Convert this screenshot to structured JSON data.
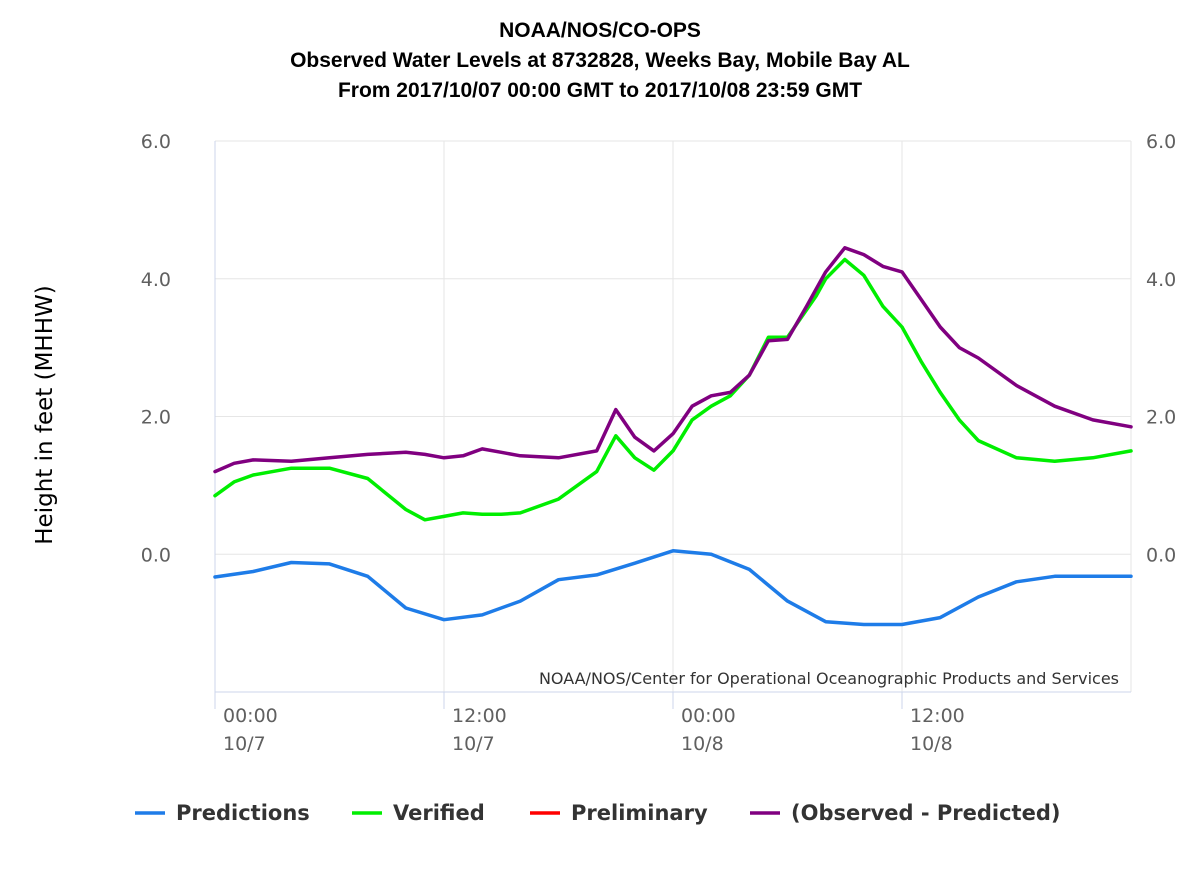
{
  "chart_data": {
    "type": "line",
    "title": [
      "NOAA/NOS/CO-OPS",
      "Observed Water Levels at 8732828, Weeks Bay, Mobile Bay AL",
      "From 2017/10/07 00:00 GMT to 2017/10/08 23:59 GMT"
    ],
    "ylabel": "Height in feet (MHHW)",
    "ylim": [
      -2.0,
      6.0
    ],
    "xlim": [
      0,
      48
    ],
    "y_ticks": [
      "6.0",
      "4.0",
      "2.0",
      "0.0"
    ],
    "x_ticks": [
      {
        "time": "00:00",
        "date": "10/7"
      },
      {
        "time": "12:00",
        "date": "10/7"
      },
      {
        "time": "00:00",
        "date": "10/8"
      },
      {
        "time": "12:00",
        "date": "10/8"
      }
    ],
    "grid": true,
    "credit": "NOAA/NOS/Center for Operational Oceanographic Products and Services",
    "legend_position": "bottom",
    "series": [
      {
        "name": "Predictions",
        "color": "#1e7ce8",
        "x": [
          0,
          2,
          4,
          6,
          8,
          10,
          12,
          14,
          16,
          18,
          20,
          22,
          24,
          26,
          28,
          30,
          32,
          34,
          36,
          38,
          40,
          42,
          44,
          46,
          48
        ],
        "values": [
          -0.33,
          -0.25,
          -0.12,
          -0.14,
          -0.32,
          -0.78,
          -0.95,
          -0.88,
          -0.68,
          -0.37,
          -0.3,
          -0.13,
          0.05,
          0.0,
          -0.22,
          -0.68,
          -0.98,
          -1.02,
          -1.02,
          -0.92,
          -0.62,
          -0.4,
          -0.32,
          -0.32,
          -0.32
        ]
      },
      {
        "name": "Verified",
        "color": "#00ee00",
        "x": [
          0,
          1,
          2,
          4,
          6,
          8,
          10,
          11,
          12,
          13,
          14,
          15,
          16,
          18,
          20,
          21,
          22,
          23,
          24,
          25,
          26,
          27,
          28,
          29,
          30,
          31,
          31.5,
          32,
          33,
          34,
          35,
          36,
          37,
          38,
          39,
          40,
          42,
          44,
          46,
          48
        ],
        "values": [
          0.85,
          1.05,
          1.15,
          1.25,
          1.25,
          1.1,
          0.65,
          0.5,
          0.55,
          0.6,
          0.58,
          0.58,
          0.6,
          0.8,
          1.2,
          1.72,
          1.4,
          1.22,
          1.5,
          1.95,
          2.15,
          2.3,
          2.6,
          3.15,
          3.15,
          3.55,
          3.75,
          4.0,
          4.28,
          4.05,
          3.6,
          3.3,
          2.8,
          2.35,
          1.95,
          1.65,
          1.4,
          1.35,
          1.4,
          1.5
        ]
      },
      {
        "name": "Preliminary",
        "color": "#ff0000",
        "x": [],
        "values": []
      },
      {
        "name": "(Observed - Predicted)",
        "color": "#800080",
        "x": [
          0,
          1,
          2,
          4,
          6,
          8,
          10,
          11,
          12,
          13,
          14,
          15,
          16,
          18,
          20,
          21,
          22,
          23,
          24,
          25,
          26,
          27,
          28,
          29,
          30,
          31,
          32,
          33,
          34,
          35,
          36,
          37,
          38,
          39,
          40,
          42,
          44,
          46,
          48
        ],
        "values": [
          1.2,
          1.32,
          1.37,
          1.35,
          1.4,
          1.45,
          1.48,
          1.45,
          1.4,
          1.43,
          1.53,
          1.48,
          1.43,
          1.4,
          1.5,
          2.1,
          1.7,
          1.5,
          1.75,
          2.15,
          2.3,
          2.35,
          2.6,
          3.1,
          3.12,
          3.6,
          4.1,
          4.45,
          4.35,
          4.18,
          4.1,
          3.7,
          3.3,
          3.0,
          2.85,
          2.45,
          2.15,
          1.95,
          1.85
        ]
      }
    ]
  }
}
